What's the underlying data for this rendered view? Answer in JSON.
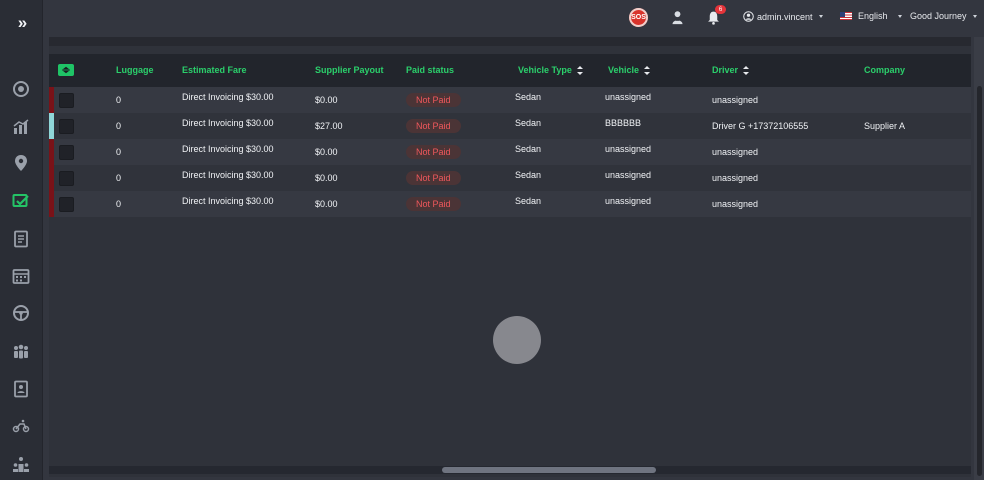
{
  "topbar": {
    "sos_label": "SOS",
    "notification_count": "6",
    "user_name": "admin.vincent",
    "language": "English",
    "company": "Good Journey"
  },
  "table": {
    "columns": {
      "luggage": "Luggage",
      "estimated_fare": "Estimated Fare",
      "supplier_payout": "Supplier Payout",
      "paid_status": "Paid status",
      "vehicle_type": "Vehicle Type",
      "vehicle": "Vehicle",
      "driver": "Driver",
      "company": "Company"
    },
    "rows": [
      {
        "luggage": "0",
        "fare": "Direct Invoicing  $30.00",
        "payout": "$0.00",
        "paid": "Not Paid",
        "vehicle_type": "Sedan",
        "vehicle": "unassigned",
        "driver": "unassigned",
        "company": ""
      },
      {
        "luggage": "0",
        "fare": "Direct Invoicing  $30.00",
        "payout": "$27.00",
        "paid": "Not Paid",
        "vehicle_type": "Sedan",
        "vehicle": "BBBBBB",
        "driver": "Driver G    +17372106555",
        "company": "Supplier A"
      },
      {
        "luggage": "0",
        "fare": "Direct Invoicing  $30.00",
        "payout": "$0.00",
        "paid": "Not Paid",
        "vehicle_type": "Sedan",
        "vehicle": "unassigned",
        "driver": "unassigned",
        "company": ""
      },
      {
        "luggage": "0",
        "fare": "Direct Invoicing  $30.00",
        "payout": "$0.00",
        "paid": "Not Paid",
        "vehicle_type": "Sedan",
        "vehicle": "unassigned",
        "driver": "unassigned",
        "company": ""
      },
      {
        "luggage": "0",
        "fare": "Direct Invoicing  $30.00",
        "payout": "$0.00",
        "paid": "Not Paid",
        "vehicle_type": "Sedan",
        "vehicle": "unassigned",
        "driver": "unassigned",
        "company": ""
      }
    ]
  },
  "colors": {
    "accent": "#2bcf6b",
    "not_paid": "#f0585c",
    "row_marker_red": "#7a1218",
    "row_marker_teal": "#8fd6d8"
  },
  "icons": {
    "sidebar": [
      "expand-icon",
      "dashboard-icon",
      "analytics-icon",
      "map-pin-icon",
      "bookings-icon",
      "invoice-icon",
      "calendar-icon",
      "steering-wheel-icon",
      "users-group-icon",
      "contact-card-icon",
      "vehicles-icon",
      "hierarchy-icon"
    ]
  }
}
